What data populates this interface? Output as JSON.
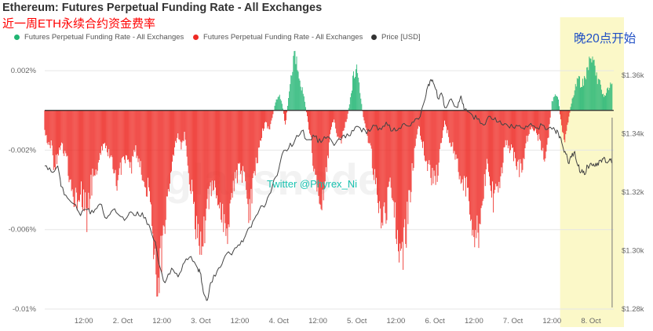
{
  "title": "Ethereum: Futures Perpetual Funding Rate - All Exchanges",
  "subtitle": "近一周ETH永续合约资金费率",
  "annotation": "晚20点开始",
  "legend": [
    {
      "label": "Futures Perpetual Funding Rate - All Exchanges",
      "color": "#21b573"
    },
    {
      "label": "Futures Perpetual Funding Rate - All Exchanges",
      "color": "#ee2a24"
    },
    {
      "label": "Price [USD]",
      "color": "#333333"
    }
  ],
  "watermark": {
    "text": "Twitter @Phyrex_Ni",
    "logo": "glassnode"
  },
  "colors": {
    "positive": "#21b573",
    "negative": "#ee2a24",
    "price": "#444444",
    "highlight": "#fbf8c8",
    "grid": "#e6e6e6"
  },
  "chart_data": {
    "type": "bar",
    "x_axis": {
      "ticks": [
        "12:00",
        "2. Oct",
        "12:00",
        "3. Oct",
        "12:00",
        "4. Oct",
        "12:00",
        "5. Oct",
        "12:00",
        "6. Oct",
        "12:00",
        "7. Oct",
        "12:00",
        "8. Oct"
      ],
      "tick_hours": [
        12,
        24,
        36,
        48,
        60,
        72,
        84,
        96,
        108,
        120,
        132,
        144,
        156,
        168
      ],
      "range_hours": [
        0,
        175
      ]
    },
    "y_left": {
      "ticks": [
        "0.002%",
        "-0.002%",
        "-0.006%",
        "-0.01%"
      ],
      "tick_values": [
        0.002,
        -0.002,
        -0.006,
        -0.01
      ],
      "range": [
        -0.01,
        0.0022
      ]
    },
    "y_right": {
      "ticks": [
        "$1.36k",
        "$1.34k",
        "$1.32k",
        "$1.30k",
        "$1.28k"
      ],
      "tick_values": [
        1360,
        1340,
        1320,
        1300,
        1280
      ],
      "range": [
        1280,
        1363
      ]
    },
    "highlight_range_hours": [
      158.5,
      175
    ],
    "series": [
      {
        "name": "Futures Perpetual Funding Rate - All Exchanges",
        "axis": "left",
        "keyframes": [
          [
            0,
            -0.0012
          ],
          [
            2,
            -0.0018
          ],
          [
            3,
            -0.0028
          ],
          [
            5,
            -0.0018
          ],
          [
            7,
            -0.0026
          ],
          [
            9,
            -0.0048
          ],
          [
            11,
            -0.0038
          ],
          [
            13,
            -0.0052
          ],
          [
            14,
            -0.004
          ],
          [
            16,
            -0.0028
          ],
          [
            18,
            -0.0016
          ],
          [
            20,
            -0.0022
          ],
          [
            22,
            -0.0036
          ],
          [
            23,
            -0.003
          ],
          [
            25,
            -0.0024
          ],
          [
            27,
            -0.0028
          ],
          [
            28,
            -0.002
          ],
          [
            30,
            -0.003
          ],
          [
            32,
            -0.0042
          ],
          [
            33,
            -0.006
          ],
          [
            34,
            -0.0078
          ],
          [
            35,
            -0.0082
          ],
          [
            36,
            -0.007
          ],
          [
            37,
            -0.0054
          ],
          [
            38,
            -0.004
          ],
          [
            39,
            -0.0028
          ],
          [
            40,
            -0.0018
          ],
          [
            41,
            -0.001
          ],
          [
            42,
            -0.002
          ],
          [
            43,
            -0.0012
          ],
          [
            44,
            -0.0026
          ],
          [
            46,
            -0.005
          ],
          [
            47,
            -0.0064
          ],
          [
            48,
            -0.007
          ],
          [
            49,
            -0.0062
          ],
          [
            50,
            -0.0048
          ],
          [
            52,
            -0.0036
          ],
          [
            54,
            -0.0048
          ],
          [
            56,
            -0.006
          ],
          [
            57,
            -0.0052
          ],
          [
            58,
            -0.0038
          ],
          [
            60,
            -0.003
          ],
          [
            62,
            -0.0036
          ],
          [
            63,
            -0.0054
          ],
          [
            64,
            -0.004
          ],
          [
            65,
            -0.0028
          ],
          [
            66,
            -0.0018
          ],
          [
            67,
            -0.001
          ],
          [
            68,
            -0.0006
          ],
          [
            69,
            -0.001
          ],
          [
            70,
            -0.0004
          ],
          [
            71,
            0.0004
          ],
          [
            72,
            0.0008
          ],
          [
            73,
            0.0004
          ],
          [
            74,
            -0.0008
          ],
          [
            75,
            0.0006
          ],
          [
            76,
            0.002
          ],
          [
            77,
            0.0028
          ],
          [
            78,
            0.0022
          ],
          [
            79,
            0.0012
          ],
          [
            80,
            0.0004
          ],
          [
            81,
            -0.0006
          ],
          [
            82,
            -0.0016
          ],
          [
            83,
            -0.0032
          ],
          [
            84,
            -0.0044
          ],
          [
            85,
            -0.0052
          ],
          [
            86,
            -0.004
          ],
          [
            87,
            -0.0024
          ],
          [
            88,
            -0.001
          ],
          [
            89,
            -0.0004
          ],
          [
            90,
            -0.0012
          ],
          [
            91,
            -0.0016
          ],
          [
            92,
            -0.001
          ],
          [
            93,
            -0.0004
          ],
          [
            94,
            0.0006
          ],
          [
            95,
            0.0018
          ],
          [
            96,
            0.002
          ],
          [
            97,
            0.001
          ],
          [
            98,
            -0.0004
          ],
          [
            99,
            -0.001
          ],
          [
            100,
            -0.0018
          ],
          [
            101,
            -0.0028
          ],
          [
            102,
            -0.004
          ],
          [
            103,
            -0.0052
          ],
          [
            104,
            -0.0058
          ],
          [
            105,
            -0.005
          ],
          [
            106,
            -0.0038
          ],
          [
            107,
            -0.0044
          ],
          [
            108,
            -0.006
          ],
          [
            109,
            -0.0066
          ],
          [
            110,
            -0.0074
          ],
          [
            111,
            -0.0064
          ],
          [
            112,
            -0.0048
          ],
          [
            113,
            -0.0032
          ],
          [
            114,
            -0.0018
          ],
          [
            115,
            -0.0008
          ],
          [
            116,
            -0.0016
          ],
          [
            118,
            -0.0028
          ],
          [
            120,
            -0.0036
          ],
          [
            121,
            -0.003
          ],
          [
            122,
            -0.0014
          ],
          [
            123,
            -0.0006
          ],
          [
            124,
            -0.0012
          ],
          [
            126,
            -0.0022
          ],
          [
            128,
            -0.0032
          ],
          [
            130,
            -0.004
          ],
          [
            131,
            -0.005
          ],
          [
            132,
            -0.0058
          ],
          [
            133,
            -0.0064
          ],
          [
            134,
            -0.0056
          ],
          [
            135,
            -0.004
          ],
          [
            136,
            -0.0028
          ],
          [
            137,
            -0.0034
          ],
          [
            138,
            -0.0046
          ],
          [
            140,
            -0.004
          ],
          [
            141,
            -0.0024
          ],
          [
            142,
            -0.0016
          ],
          [
            144,
            -0.0022
          ],
          [
            146,
            -0.003
          ],
          [
            147,
            -0.0026
          ],
          [
            148,
            -0.0016
          ],
          [
            150,
            -0.0008
          ],
          [
            152,
            -0.0014
          ],
          [
            154,
            -0.0024
          ],
          [
            155,
            -0.0012
          ],
          [
            156,
            0.0004
          ],
          [
            157,
            0.0008
          ],
          [
            158,
            0.0006
          ],
          [
            158.5,
            -0.0002
          ],
          [
            159,
            -0.0008
          ],
          [
            160,
            -0.0014
          ],
          [
            161,
            -0.0006
          ],
          [
            162,
            0.0004
          ],
          [
            163,
            0.001
          ],
          [
            164,
            0.0018
          ],
          [
            165,
            0.0012
          ],
          [
            166,
            0.0016
          ],
          [
            167,
            0.002
          ],
          [
            168,
            0.0026
          ],
          [
            169,
            0.0024
          ],
          [
            170,
            0.0016
          ],
          [
            171,
            0.0012
          ],
          [
            172,
            0.0006
          ],
          [
            173,
            0.001
          ],
          [
            174,
            0.0014
          ],
          [
            174.5,
            0.0012
          ]
        ]
      },
      {
        "name": "Price [USD]",
        "type": "line",
        "axis": "right",
        "points": [
          [
            0,
            1329
          ],
          [
            2,
            1327
          ],
          [
            4,
            1329
          ],
          [
            5,
            1322
          ],
          [
            7,
            1318
          ],
          [
            9,
            1316
          ],
          [
            11,
            1312
          ],
          [
            13,
            1314
          ],
          [
            15,
            1313
          ],
          [
            17,
            1316
          ],
          [
            19,
            1311
          ],
          [
            21,
            1314
          ],
          [
            23,
            1312
          ],
          [
            25,
            1311
          ],
          [
            26,
            1313
          ],
          [
            28,
            1312
          ],
          [
            30,
            1313
          ],
          [
            32,
            1309
          ],
          [
            34,
            1303
          ],
          [
            35,
            1296
          ],
          [
            37,
            1289
          ],
          [
            39,
            1294
          ],
          [
            41,
            1291
          ],
          [
            43,
            1296
          ],
          [
            45,
            1298
          ],
          [
            47,
            1294
          ],
          [
            48,
            1292
          ],
          [
            49,
            1285
          ],
          [
            50,
            1283
          ],
          [
            51,
            1289
          ],
          [
            53,
            1293
          ],
          [
            55,
            1297
          ],
          [
            57,
            1299
          ],
          [
            59,
            1301
          ],
          [
            61,
            1303
          ],
          [
            62,
            1306
          ],
          [
            64,
            1310
          ],
          [
            66,
            1314
          ],
          [
            68,
            1316
          ],
          [
            70,
            1322
          ],
          [
            72,
            1328
          ],
          [
            73,
            1333
          ],
          [
            75,
            1335
          ],
          [
            77,
            1338
          ],
          [
            79,
            1341
          ],
          [
            81,
            1338
          ],
          [
            83,
            1339
          ],
          [
            85,
            1337
          ],
          [
            87,
            1339
          ],
          [
            89,
            1336
          ],
          [
            91,
            1338
          ],
          [
            93,
            1340
          ],
          [
            95,
            1341
          ],
          [
            97,
            1342
          ],
          [
            99,
            1340
          ],
          [
            101,
            1343
          ],
          [
            103,
            1342
          ],
          [
            105,
            1344
          ],
          [
            107,
            1341
          ],
          [
            109,
            1342
          ],
          [
            111,
            1343
          ],
          [
            113,
            1344
          ],
          [
            115,
            1345
          ],
          [
            117,
            1352
          ],
          [
            118,
            1357
          ],
          [
            119,
            1358
          ],
          [
            120,
            1356
          ],
          [
            121,
            1352
          ],
          [
            122,
            1354
          ],
          [
            123,
            1349
          ],
          [
            125,
            1352
          ],
          [
            127,
            1349
          ],
          [
            128,
            1353
          ],
          [
            129,
            1348
          ],
          [
            131,
            1347
          ],
          [
            133,
            1345
          ],
          [
            135,
            1343
          ],
          [
            137,
            1346
          ],
          [
            139,
            1344
          ],
          [
            141,
            1343
          ],
          [
            143,
            1342
          ],
          [
            145,
            1343
          ],
          [
            147,
            1342
          ],
          [
            149,
            1343
          ],
          [
            151,
            1342
          ],
          [
            153,
            1343
          ],
          [
            155,
            1342
          ],
          [
            157,
            1341
          ],
          [
            158,
            1340
          ],
          [
            159,
            1337
          ],
          [
            160,
            1334
          ],
          [
            161,
            1330
          ],
          [
            162,
            1332
          ],
          [
            163,
            1334
          ],
          [
            164,
            1329
          ],
          [
            165,
            1327
          ],
          [
            166,
            1326
          ],
          [
            167,
            1329
          ],
          [
            168,
            1330
          ],
          [
            169,
            1329
          ],
          [
            170,
            1330
          ],
          [
            171,
            1331
          ],
          [
            172,
            1332
          ],
          [
            173,
            1330
          ],
          [
            174,
            1331
          ],
          [
            174.5,
            1330
          ]
        ]
      }
    ]
  }
}
